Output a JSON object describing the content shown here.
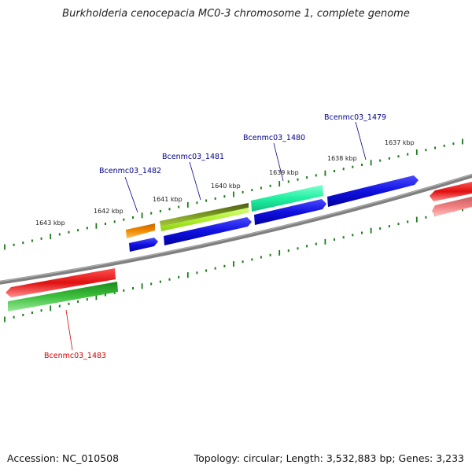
{
  "header": {
    "title": "Burkholderia cenocepacia MC0-3 chromosome 1, complete genome"
  },
  "footer": {
    "accession": "Accession: NC_010508",
    "stats": "Topology: circular; Length: 3,532,883 bp; Genes: 3,233"
  },
  "kbp_labels": [
    "1643 kbp",
    "1642 kbp",
    "1641 kbp",
    "1640 kbp",
    "1639 kbp",
    "1638 kbp",
    "1637 kbp"
  ],
  "gene_labels": [
    {
      "text": "Bcenmc03_1482",
      "color": "#00008b"
    },
    {
      "text": "Bcenmc03_1481",
      "color": "#00008b"
    },
    {
      "text": "Bcenmc03_1480",
      "color": "#00008b"
    },
    {
      "text": "Bcenmc03_1479",
      "color": "#00008b"
    },
    {
      "text": "Bcenmc03_1483",
      "color": "#cc0000"
    }
  ],
  "colors": {
    "backbone": "#808080",
    "tick": "#1a7a1a",
    "cds_forward": "#1010e0",
    "highlight_red": "#e01010",
    "highlight_green": "#2aa82a",
    "orange": "#f08a00",
    "olive": "#6a8a10",
    "lime": "#b8f040",
    "aqua": "#20f0a0",
    "salmon": "#f08080"
  }
}
